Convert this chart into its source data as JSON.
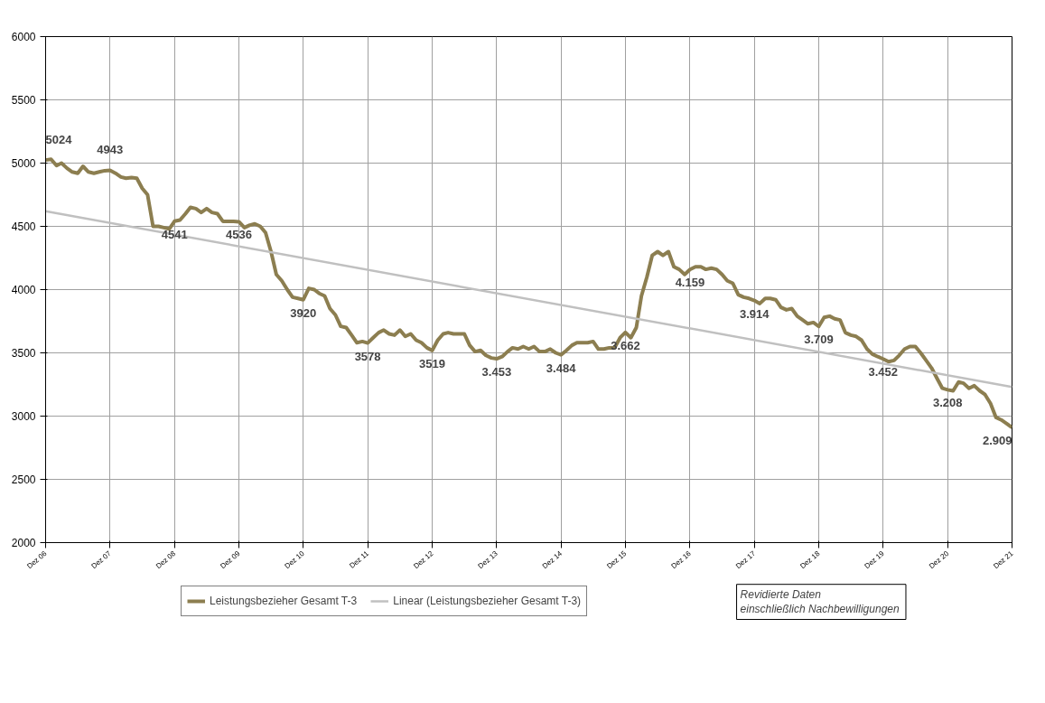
{
  "chart_data": {
    "type": "line",
    "xlim": [
      "2006-12",
      "2021-12"
    ],
    "ylim": [
      2000,
      6000
    ],
    "yticks": [
      2000,
      2500,
      3000,
      3500,
      4000,
      4500,
      5000,
      5500,
      6000
    ],
    "xticks": [
      {
        "value": "2006-12",
        "label": "Dez 06"
      },
      {
        "value": "2007-12",
        "label": "Dez 07"
      },
      {
        "value": "2008-12",
        "label": "Dez 08"
      },
      {
        "value": "2009-12",
        "label": "Dez 09"
      },
      {
        "value": "2010-12",
        "label": "Dez 10"
      },
      {
        "value": "2011-12",
        "label": "Dez 11"
      },
      {
        "value": "2012-12",
        "label": "Dez 12"
      },
      {
        "value": "2013-12",
        "label": "Dez 13"
      },
      {
        "value": "2014-12",
        "label": "Dez 14"
      },
      {
        "value": "2015-12",
        "label": "Dez 15"
      },
      {
        "value": "2016-12",
        "label": "Dez 16"
      },
      {
        "value": "2017-12",
        "label": "Dez 17"
      },
      {
        "value": "2018-12",
        "label": "Dez 18"
      },
      {
        "value": "2019-12",
        "label": "Dez 19"
      },
      {
        "value": "2020-12",
        "label": "Dez 20"
      },
      {
        "value": "2021-12",
        "label": "Dez 21"
      }
    ],
    "grid": true,
    "legend": "bottom",
    "marker": "none",
    "line_style": "solid",
    "series": [
      {
        "name": "Leistungsbezieher Gesamt T-3",
        "color": "#8c7e50",
        "x": [
          "2006-12",
          "2007-01",
          "2007-02",
          "2007-03",
          "2007-04",
          "2007-05",
          "2007-06",
          "2007-07",
          "2007-08",
          "2007-09",
          "2007-10",
          "2007-11",
          "2007-12",
          "2008-01",
          "2008-02",
          "2008-03",
          "2008-04",
          "2008-05",
          "2008-06",
          "2008-07",
          "2008-08",
          "2008-09",
          "2008-10",
          "2008-11",
          "2008-12",
          "2009-01",
          "2009-02",
          "2009-03",
          "2009-04",
          "2009-05",
          "2009-06",
          "2009-07",
          "2009-08",
          "2009-09",
          "2009-10",
          "2009-11",
          "2009-12",
          "2010-01",
          "2010-02",
          "2010-03",
          "2010-04",
          "2010-05",
          "2010-06",
          "2010-07",
          "2010-08",
          "2010-09",
          "2010-10",
          "2010-11",
          "2010-12",
          "2011-01",
          "2011-02",
          "2011-03",
          "2011-04",
          "2011-05",
          "2011-06",
          "2011-07",
          "2011-08",
          "2011-09",
          "2011-10",
          "2011-11",
          "2011-12",
          "2012-01",
          "2012-02",
          "2012-03",
          "2012-04",
          "2012-05",
          "2012-06",
          "2012-07",
          "2012-08",
          "2012-09",
          "2012-10",
          "2012-11",
          "2012-12",
          "2013-01",
          "2013-02",
          "2013-03",
          "2013-04",
          "2013-05",
          "2013-06",
          "2013-07",
          "2013-08",
          "2013-09",
          "2013-10",
          "2013-11",
          "2013-12",
          "2014-01",
          "2014-02",
          "2014-03",
          "2014-04",
          "2014-05",
          "2014-06",
          "2014-07",
          "2014-08",
          "2014-09",
          "2014-10",
          "2014-11",
          "2014-12",
          "2015-01",
          "2015-02",
          "2015-03",
          "2015-04",
          "2015-05",
          "2015-06",
          "2015-07",
          "2015-08",
          "2015-09",
          "2015-10",
          "2015-11",
          "2015-12",
          "2016-01",
          "2016-02",
          "2016-03",
          "2016-04",
          "2016-05",
          "2016-06",
          "2016-07",
          "2016-08",
          "2016-09",
          "2016-10",
          "2016-11",
          "2016-12",
          "2017-01",
          "2017-02",
          "2017-03",
          "2017-04",
          "2017-05",
          "2017-06",
          "2017-07",
          "2017-08",
          "2017-09",
          "2017-10",
          "2017-11",
          "2017-12",
          "2018-01",
          "2018-02",
          "2018-03",
          "2018-04",
          "2018-05",
          "2018-06",
          "2018-07",
          "2018-08",
          "2018-09",
          "2018-10",
          "2018-11",
          "2018-12",
          "2019-01",
          "2019-02",
          "2019-03",
          "2019-04",
          "2019-05",
          "2019-06",
          "2019-07",
          "2019-08",
          "2019-09",
          "2019-10",
          "2019-11",
          "2019-12",
          "2020-01",
          "2020-02",
          "2020-03",
          "2020-04",
          "2020-05",
          "2020-06",
          "2020-07",
          "2020-08",
          "2020-09",
          "2020-10",
          "2020-11",
          "2020-12",
          "2021-01",
          "2021-02",
          "2021-03",
          "2021-04",
          "2021-05",
          "2021-06",
          "2021-07",
          "2021-08",
          "2021-09",
          "2021-10",
          "2021-11",
          "2021-12"
        ],
        "values": [
          5024,
          5030,
          4980,
          5000,
          4960,
          4930,
          4920,
          4975,
          4930,
          4920,
          4930,
          4940,
          4943,
          4920,
          4890,
          4880,
          4885,
          4880,
          4800,
          4750,
          4500,
          4500,
          4490,
          4480,
          4541,
          4550,
          4600,
          4650,
          4640,
          4610,
          4640,
          4610,
          4600,
          4540,
          4540,
          4540,
          4536,
          4490,
          4510,
          4520,
          4500,
          4450,
          4300,
          4120,
          4070,
          4000,
          3940,
          3930,
          3920,
          4010,
          4000,
          3970,
          3950,
          3850,
          3800,
          3710,
          3700,
          3640,
          3580,
          3590,
          3578,
          3620,
          3660,
          3680,
          3650,
          3640,
          3680,
          3630,
          3650,
          3600,
          3580,
          3540,
          3519,
          3600,
          3650,
          3660,
          3650,
          3650,
          3650,
          3560,
          3510,
          3520,
          3480,
          3460,
          3453,
          3470,
          3510,
          3540,
          3530,
          3550,
          3530,
          3550,
          3510,
          3510,
          3530,
          3500,
          3484,
          3520,
          3560,
          3580,
          3580,
          3580,
          3590,
          3530,
          3530,
          3540,
          3540,
          3620,
          3662,
          3620,
          3700,
          3950,
          4100,
          4270,
          4300,
          4270,
          4300,
          4180,
          4160,
          4120,
          4159,
          4180,
          4180,
          4160,
          4170,
          4160,
          4120,
          4070,
          4050,
          3960,
          3940,
          3930,
          3914,
          3890,
          3930,
          3930,
          3920,
          3860,
          3840,
          3850,
          3790,
          3760,
          3730,
          3740,
          3709,
          3780,
          3790,
          3770,
          3760,
          3660,
          3640,
          3630,
          3600,
          3530,
          3490,
          3470,
          3452,
          3430,
          3440,
          3480,
          3530,
          3550,
          3550,
          3500,
          3440,
          3380,
          3300,
          3220,
          3208,
          3200,
          3270,
          3260,
          3220,
          3240,
          3200,
          3170,
          3100,
          2990,
          2970,
          2940,
          2909
        ]
      },
      {
        "name": "Linear (Leistungsbezieher Gesamt T-3)",
        "color": "#c0c0c0",
        "x": [
          "2006-12",
          "2021-12"
        ],
        "values": [
          4620,
          3230
        ]
      }
    ],
    "annotations": [
      {
        "text": "5024",
        "x": "2006-12",
        "y": 5024
      },
      {
        "text": "4943",
        "x": "2007-12",
        "y": 4943
      },
      {
        "text": "4541",
        "x": "2008-12",
        "y": 4541
      },
      {
        "text": "4536",
        "x": "2009-12",
        "y": 4536
      },
      {
        "text": "3920",
        "x": "2010-12",
        "y": 3920
      },
      {
        "text": "3578",
        "x": "2011-12",
        "y": 3578
      },
      {
        "text": "3519",
        "x": "2012-12",
        "y": 3519
      },
      {
        "text": "3.453",
        "x": "2013-12",
        "y": 3453
      },
      {
        "text": "3.484",
        "x": "2014-12",
        "y": 3484
      },
      {
        "text": "3.662",
        "x": "2015-12",
        "y": 3662
      },
      {
        "text": "4.159",
        "x": "2016-12",
        "y": 4159
      },
      {
        "text": "3.914",
        "x": "2017-12",
        "y": 3914
      },
      {
        "text": "3.709",
        "x": "2018-12",
        "y": 3709
      },
      {
        "text": "3.452",
        "x": "2019-12",
        "y": 3452
      },
      {
        "text": "3.208",
        "x": "2020-12",
        "y": 3208
      },
      {
        "text": "2.909",
        "x": "2021-12",
        "y": 2909
      },
      "Revidierte Daten\neinschließlich  Nachbewilligungen"
    ]
  }
}
